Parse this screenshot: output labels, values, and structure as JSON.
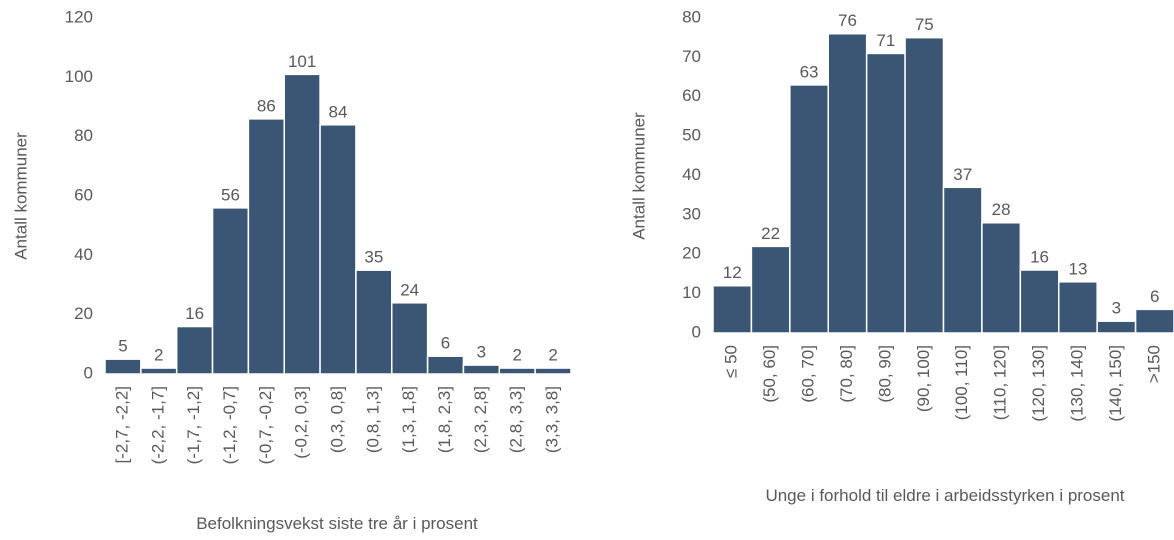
{
  "chart_data": [
    {
      "type": "bar",
      "y_label": "Antall kommuner",
      "x_label": "Befolkningsvekst siste tre år i prosent",
      "categories": [
        "[-2,7, -2,2]",
        "(-2,2, -1,7]",
        "(-1,7, -1,2]",
        "(-1,2, -0,7]",
        "(-0,7, -0,2]",
        "(-0,2, 0,3]",
        "(0,3, 0,8]",
        "(0,8, 1,3]",
        "(1,3, 1,8]",
        "(1,8, 2,3]",
        "(2,3, 2,8]",
        "(2,8, 3,3]",
        "(3,3, 3,8]"
      ],
      "values": [
        5,
        2,
        16,
        56,
        86,
        101,
        84,
        35,
        24,
        6,
        3,
        2,
        2
      ],
      "color": "#3b5574",
      "ylim": [
        0,
        120
      ],
      "yticks": [
        0,
        20,
        40,
        60,
        80,
        100,
        120
      ]
    },
    {
      "type": "bar",
      "y_label": "Antall kommuner",
      "x_label": "Unge i forhold til eldre i arbeidsstyrken i prosent",
      "categories": [
        "≤ 50",
        "(50, 60]",
        "(60, 70]",
        "(70, 80]",
        "(80, 90]",
        "(90, 100]",
        "(100, 110]",
        "(110, 120]",
        "(120, 130]",
        "(130, 140]",
        "(140, 150]",
        ">150"
      ],
      "values": [
        12,
        22,
        63,
        76,
        71,
        75,
        37,
        28,
        16,
        13,
        3,
        6
      ],
      "color": "#3b5574",
      "ylim": [
        0,
        80
      ],
      "yticks": [
        0,
        10,
        20,
        30,
        40,
        50,
        60,
        70,
        80
      ]
    }
  ]
}
